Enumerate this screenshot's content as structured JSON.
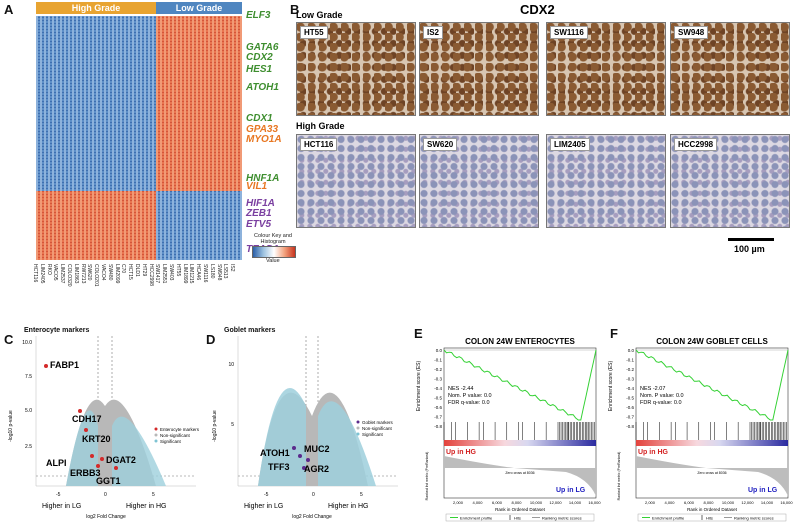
{
  "panelA": {
    "letter": "A",
    "groups": [
      {
        "label": "High Grade",
        "color": "#e8a431"
      },
      {
        "label": "Low Grade",
        "color": "#4f86c0"
      }
    ],
    "genes": [
      {
        "name": "ELF3",
        "color": "#3e8e2f"
      },
      {
        "name": "GATA6",
        "color": "#3e8e2f"
      },
      {
        "name": "CDX2",
        "color": "#3e8e2f"
      },
      {
        "name": "HES1",
        "color": "#3e8e2f"
      },
      {
        "name": "ATOH1",
        "color": "#3e8e2f"
      },
      {
        "name": "CDX1",
        "color": "#3e8e2f"
      },
      {
        "name": "GPA33",
        "color": "#e87722"
      },
      {
        "name": "MYO1A",
        "color": "#e87722"
      },
      {
        "name": "HNF1A",
        "color": "#3e8e2f"
      },
      {
        "name": "VIL1",
        "color": "#e87722"
      },
      {
        "name": "HIF1A",
        "color": "#7a3fa0"
      },
      {
        "name": "ZEB1",
        "color": "#7a3fa0"
      },
      {
        "name": "ETV5",
        "color": "#7a3fa0"
      },
      {
        "name": "TEAD1",
        "color": "#7a3fa0"
      }
    ],
    "colour_key": "Colour Key and Histogram",
    "value_label": "Value",
    "cell_lines": [
      "HCT116",
      "LIM2405",
      "RKO",
      "VACO5",
      "LIM2537",
      "COLO320",
      "LIM1863",
      "RW7213",
      "SW620",
      "COLO201",
      "VACO4",
      "SW480",
      "LIM2099",
      "C70",
      "HCT15",
      "DLD1",
      "HT29",
      "HCC2998",
      "SW1417",
      "LIM2551",
      "SW403",
      "HT55",
      "LIM1899",
      "LIM1215",
      "HCA46",
      "SW1116",
      "LS180",
      "SW948",
      "LS513",
      "IS2"
    ]
  },
  "panelB": {
    "letter": "B",
    "title": "CDX2",
    "low_grade_label": "Low Grade",
    "high_grade_label": "High Grade",
    "low_grade": [
      "HT55",
      "IS2",
      "SW1116",
      "SW948"
    ],
    "high_grade": [
      "HCT116",
      "SW620",
      "LIM2405",
      "HCC2998"
    ],
    "scale_bar": "100 µm"
  },
  "panelC": {
    "letter": "C",
    "title": "Enterocyte markers",
    "ylabel": "-log10 p-value",
    "xlabel": "log2 Fold Change",
    "left_label": "Higher in LG",
    "right_label": "Higher in HG",
    "legend": [
      "Enterocyte markers",
      "Non-significant",
      "Significant"
    ],
    "markers": [
      "FABP1",
      "CDH17",
      "KRT20",
      "ALPI",
      "DGAT2",
      "ERBB3",
      "GGT1"
    ],
    "yticks": [
      "10.0",
      "7.5",
      "5.0",
      "2.5"
    ],
    "xticks": [
      "-5",
      "0",
      "5"
    ]
  },
  "panelD": {
    "letter": "D",
    "title": "Goblet markers",
    "ylabel": "-log10 p-value",
    "xlabel": "log2 Fold Change",
    "left_label": "Higher in LG",
    "right_label": "Higher in HG",
    "legend": [
      "Goblet markers",
      "Non-significant",
      "Significant"
    ],
    "markers": [
      "ATOH1",
      "MUC2",
      "TFF3",
      "AGR2"
    ],
    "yticks": [
      "10",
      "5"
    ],
    "xticks": [
      "-5",
      "0",
      "5"
    ]
  },
  "panelE": {
    "letter": "E",
    "title": "COLON 24W ENTEROCYTES",
    "ylabel": "Enrichment score (ES)",
    "stats": [
      "NES -2.44",
      "Nom. P value: 0.0",
      "FDR q-value: 0.0"
    ],
    "up_hg": "Up in HG",
    "up_lg": "Up in LG",
    "zero_cross": "Zero cross at 8036",
    "xlabel": "Rank in Ordered Dataset",
    "metric_label": "Ranked list metric (PreRanked)",
    "yticks": [
      "0.0",
      "-0.1",
      "-0.2",
      "-0.3",
      "-0.4",
      "-0.5",
      "-0.6",
      "-0.7",
      "-0.8"
    ],
    "xticks": [
      "2,000",
      "4,000",
      "6,000",
      "8,000",
      "10,000",
      "12,000",
      "14,000",
      "16,000"
    ],
    "legend": [
      "Enrichment profile",
      "Hits",
      "Ranking metric scores"
    ]
  },
  "panelF": {
    "letter": "F",
    "title": "COLON 24W GOBLET CELLS",
    "ylabel": "Enrichment score (ES)",
    "stats": [
      "NES -2.07",
      "Nom. P value: 0.0",
      "FDR q-value: 0.0"
    ],
    "up_hg": "Up in HG",
    "up_lg": "Up in LG",
    "zero_cross": "Zero cross at 8036",
    "xlabel": "Rank in Ordered Dataset",
    "metric_label": "Ranked list metric (PreRanked)",
    "yticks": [
      "0.0",
      "-0.1",
      "-0.2",
      "-0.3",
      "-0.4",
      "-0.5",
      "-0.6",
      "-0.7",
      "-0.8"
    ],
    "xticks": [
      "2,000",
      "4,000",
      "6,000",
      "8,000",
      "10,000",
      "12,000",
      "14,000",
      "16,000"
    ],
    "legend": [
      "Enrichment profile",
      "Hits",
      "Ranking metric scores"
    ]
  }
}
